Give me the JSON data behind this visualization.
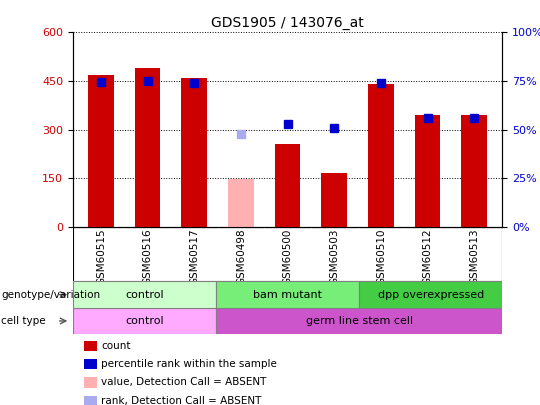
{
  "title": "GDS1905 / 143076_at",
  "samples": [
    "GSM60515",
    "GSM60516",
    "GSM60517",
    "GSM60498",
    "GSM60500",
    "GSM60503",
    "GSM60510",
    "GSM60512",
    "GSM60513"
  ],
  "count_values": [
    470,
    490,
    460,
    null,
    255,
    165,
    440,
    345,
    345
  ],
  "count_absent": [
    null,
    null,
    null,
    148,
    null,
    null,
    null,
    null,
    null
  ],
  "percentile_values": [
    448,
    451,
    445,
    null,
    318,
    305,
    443,
    335,
    335
  ],
  "percentile_absent": [
    null,
    null,
    null,
    285,
    null,
    null,
    null,
    null,
    null
  ],
  "ylim_left": [
    0,
    600
  ],
  "ylim_right": [
    0,
    100
  ],
  "yticks_left": [
    0,
    150,
    300,
    450,
    600
  ],
  "yticks_right": [
    0,
    25,
    50,
    75,
    100
  ],
  "yticklabels_right": [
    "0%",
    "25%",
    "50%",
    "75%",
    "100%"
  ],
  "bar_width": 0.55,
  "count_color": "#cc0000",
  "count_absent_color": "#ffb0b0",
  "percentile_color": "#0000cc",
  "percentile_absent_color": "#aaaaee",
  "grid_color": "black",
  "bar_bg_color": "#cccccc",
  "genotype_groups": [
    {
      "label": "control",
      "start": 0,
      "end": 3,
      "color": "#ccffcc"
    },
    {
      "label": "bam mutant",
      "start": 3,
      "end": 6,
      "color": "#77ee77"
    },
    {
      "label": "dpp overexpressed",
      "start": 6,
      "end": 9,
      "color": "#44cc44"
    }
  ],
  "celltype_groups": [
    {
      "label": "control",
      "start": 0,
      "end": 3,
      "color": "#ffaaff"
    },
    {
      "label": "germ line stem cell",
      "start": 3,
      "end": 9,
      "color": "#cc55cc"
    }
  ],
  "legend_items": [
    {
      "label": "count",
      "color": "#cc0000"
    },
    {
      "label": "percentile rank within the sample",
      "color": "#0000cc"
    },
    {
      "label": "value, Detection Call = ABSENT",
      "color": "#ffb0b0"
    },
    {
      "label": "rank, Detection Call = ABSENT",
      "color": "#aaaaee"
    }
  ],
  "ylabel_left_color": "#cc0000",
  "ylabel_right_color": "#0000cc",
  "annotation_row1_label": "genotype/variation",
  "annotation_row2_label": "cell type",
  "title_fontsize": 10
}
